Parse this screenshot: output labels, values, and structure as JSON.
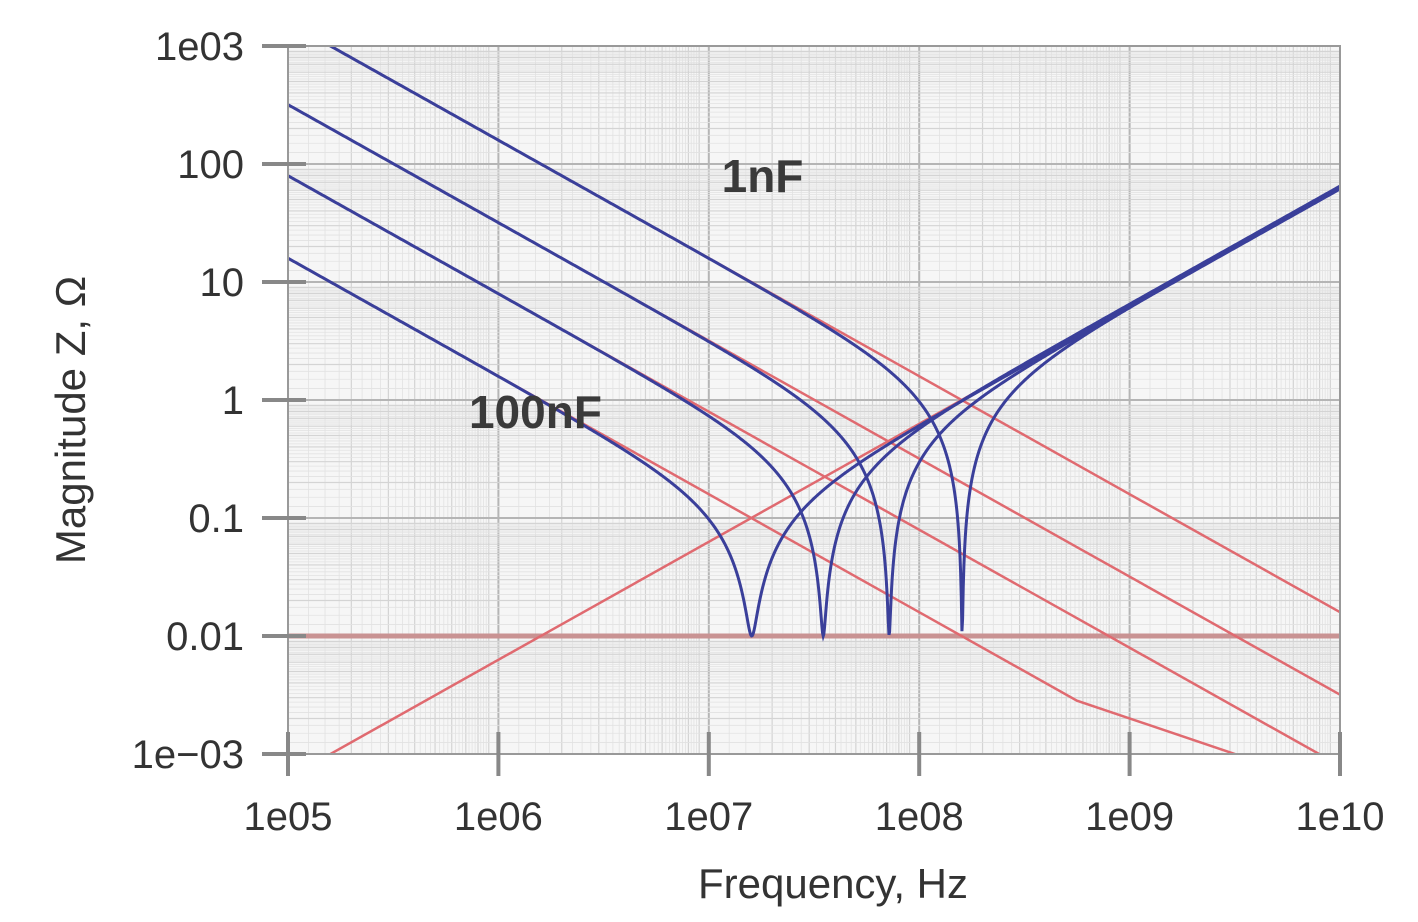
{
  "chart_data": {
    "type": "line",
    "title": "",
    "xlabel": "Frequency, Hz",
    "ylabel": "Magnitude Z, Ω",
    "x_scale": "log",
    "y_scale": "log",
    "xlim": [
      100000,
      10000000000
    ],
    "ylim": [
      0.001,
      1000
    ],
    "x_ticks": [
      {
        "value": 100000,
        "label": "1e05"
      },
      {
        "value": 1000000,
        "label": "1e06"
      },
      {
        "value": 10000000,
        "label": "1e07"
      },
      {
        "value": 100000000,
        "label": "1e08"
      },
      {
        "value": 1000000000,
        "label": "1e09"
      },
      {
        "value": 10000000000,
        "label": "1e10"
      }
    ],
    "y_ticks": [
      {
        "value": 0.001,
        "label": "1e−03"
      },
      {
        "value": 0.01,
        "label": "0.01"
      },
      {
        "value": 0.1,
        "label": "0.1"
      },
      {
        "value": 1,
        "label": "1"
      },
      {
        "value": 10,
        "label": "10"
      },
      {
        "value": 100,
        "label": "100"
      },
      {
        "value": 1000,
        "label": "1e03"
      }
    ],
    "grid": true,
    "legend": "none",
    "colors": {
      "capacitor_total": "#3a3f9a",
      "component": "#e06a70",
      "esr": "#c99393",
      "grid_minor": "#d4d4d4",
      "grid_major": "#b5b5b5",
      "axis": "#888888"
    },
    "esr_ohm": 0.01,
    "esl_henry": 1e-09,
    "capacitors": [
      {
        "label": "1nF",
        "capacitance_farad": 1e-09,
        "resonance_hz": 160000000
      },
      {
        "label": "",
        "capacitance_farad": 5e-09,
        "resonance_hz": 72000000
      },
      {
        "label": "",
        "capacitance_farad": 2e-08,
        "resonance_hz": 35000000
      },
      {
        "label": "100nF",
        "capacitance_farad": 1e-07,
        "resonance_hz": 16000000
      }
    ],
    "annotations": [
      {
        "text": "1nF",
        "x": 18000000,
        "y": 100
      },
      {
        "text": "100nF",
        "x": 1500000,
        "y": 1
      }
    ]
  }
}
